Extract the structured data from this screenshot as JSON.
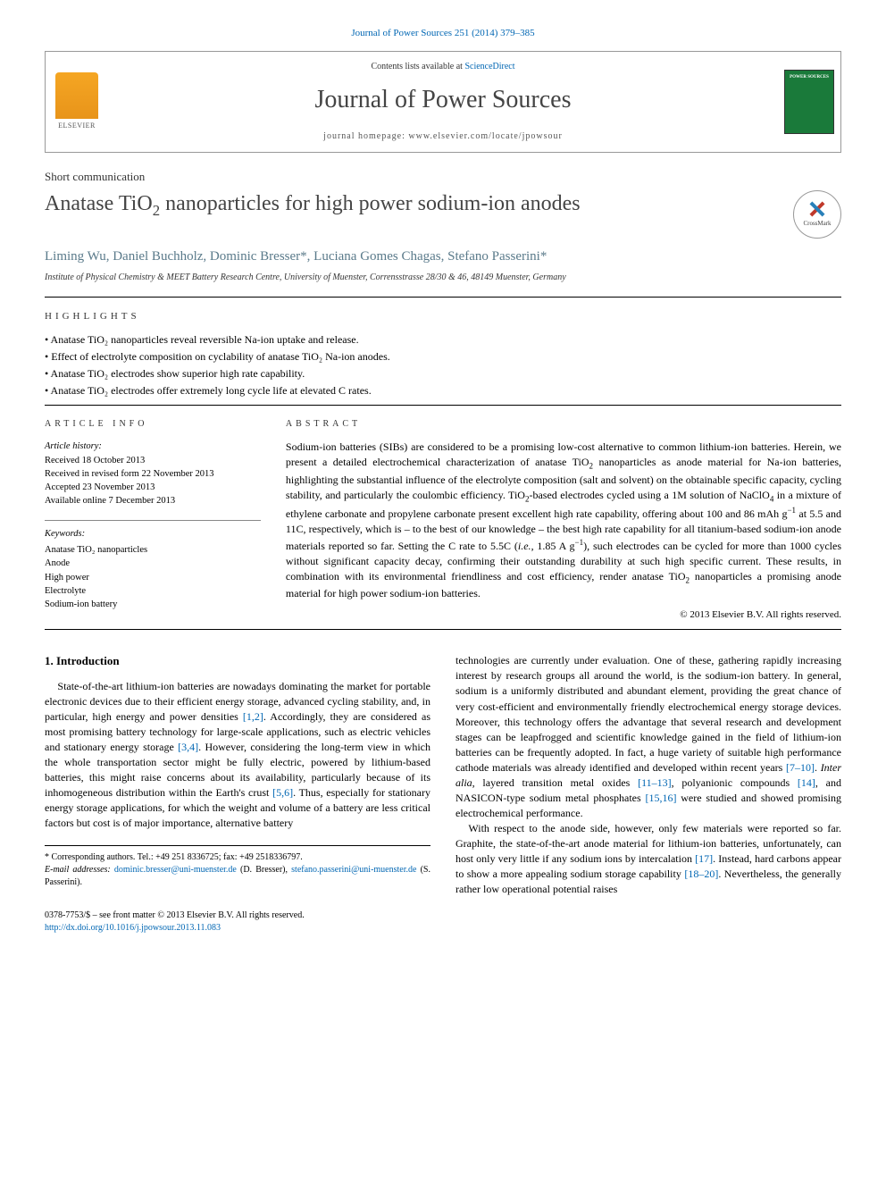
{
  "citation": "Journal of Power Sources 251 (2014) 379–385",
  "header": {
    "contents_prefix": "Contents lists available at ",
    "contents_link_text": "ScienceDirect",
    "journal_name": "Journal of Power Sources",
    "homepage_prefix": "journal homepage: ",
    "homepage_url": "www.elsevier.com/locate/jpowsour",
    "publisher_label": "ELSEVIER"
  },
  "article_type": "Short communication",
  "title_html": "Anatase TiO<sub>2</sub> nanoparticles for high power sodium-ion anodes",
  "crossmark_label": "CrossMark",
  "authors_html": "Liming Wu, Daniel Buchholz, Dominic Bresser<span class='corr'>*</span>, Luciana Gomes Chagas, Stefano Passerini<span class='corr'>*</span>",
  "affiliation": "Institute of Physical Chemistry & MEET Battery Research Centre, University of Muenster, Corrensstrasse 28/30 & 46, 48149 Muenster, Germany",
  "highlights_head": "highlights",
  "highlights": [
    "Anatase TiO₂ nanoparticles reveal reversible Na-ion uptake and release.",
    "Effect of electrolyte composition on cyclability of anatase TiO₂ Na-ion anodes.",
    "Anatase TiO₂ electrodes show superior high rate capability.",
    "Anatase TiO₂ electrodes offer extremely long cycle life at elevated C rates."
  ],
  "article_info_head": "article info",
  "history": {
    "head": "Article history:",
    "received": "Received 18 October 2013",
    "revised": "Received in revised form 22 November 2013",
    "accepted": "Accepted 23 November 2013",
    "online": "Available online 7 December 2013"
  },
  "keywords_head": "Keywords:",
  "keywords": [
    "Anatase TiO₂ nanoparticles",
    "Anode",
    "High power",
    "Electrolyte",
    "Sodium-ion battery"
  ],
  "abstract_head": "abstract",
  "abstract_html": "Sodium-ion batteries (SIBs) are considered to be a promising low-cost alternative to common lithium-ion batteries. Herein, we present a detailed electrochemical characterization of anatase TiO<sub>2</sub> nanoparticles as anode material for Na-ion batteries, highlighting the substantial influence of the electrolyte composition (salt and solvent) on the obtainable specific capacity, cycling stability, and particularly the coulombic efficiency. TiO<sub>2</sub>-based electrodes cycled using a 1M solution of NaClO<sub>4</sub> in a mixture of ethylene carbonate and propylene carbonate present excellent high rate capability, offering about 100 and 86 mAh g<sup>−1</sup> at 5.5 and 11C, respectively, which is – to the best of our knowledge – the best high rate capability for all titanium-based sodium-ion anode materials reported so far. Setting the C rate to 5.5C (<span class='ital'>i.e.</span>, 1.85 A g<sup>−1</sup>), such electrodes can be cycled for more than 1000 cycles without significant capacity decay, confirming their outstanding durability at such high specific current. These results, in combination with its environmental friendliness and cost efficiency, render anatase TiO<sub>2</sub> nanoparticles a promising anode material for high power sodium-ion batteries.",
  "copyright": "© 2013 Elsevier B.V. All rights reserved.",
  "intro_head": "1. Introduction",
  "intro_p1_html": "State-of-the-art lithium-ion batteries are nowadays dominating the market for portable electronic devices due to their efficient energy storage, advanced cycling stability, and, in particular, high energy and power densities <span class='ref'>[1,2]</span>. Accordingly, they are considered as most promising battery technology for large-scale applications, such as electric vehicles and stationary energy storage <span class='ref'>[3,4]</span>. However, considering the long-term view in which the whole transportation sector might be fully electric, powered by lithium-based batteries, this might raise concerns about its availability, particularly because of its inhomogeneous distribution within the Earth's crust <span class='ref'>[5,6]</span>. Thus, especially for stationary energy storage applications, for which the weight and volume of a battery are less critical factors but cost is of major importance, alternative battery",
  "intro_p1b_html": "technologies are currently under evaluation. One of these, gathering rapidly increasing interest by research groups all around the world, is the sodium-ion battery. In general, sodium is a uniformly distributed and abundant element, providing the great chance of very cost-efficient and environmentally friendly electrochemical energy storage devices. Moreover, this technology offers the advantage that several research and development stages can be leapfrogged and scientific knowledge gained in the field of lithium-ion batteries can be frequently adopted. In fact, a huge variety of suitable high performance cathode materials was already identified and developed within recent years <span class='ref'>[7–10]</span>. <span class='ital'>Inter alia</span>, layered transition metal oxides <span class='ref'>[11–13]</span>, polyanionic compounds <span class='ref'>[14]</span>, and NASICON-type sodium metal phosphates <span class='ref'>[15,16]</span> were studied and showed promising electrochemical performance.",
  "intro_p2_html": "With respect to the anode side, however, only few materials were reported so far. Graphite, the state-of-the-art anode material for lithium-ion batteries, unfortunately, can host only very little if any sodium ions by intercalation <span class='ref'>[17]</span>. Instead, hard carbons appear to show a more appealing sodium storage capability <span class='ref'>[18–20]</span>. Nevertheless, the generally rather low operational potential raises",
  "footnote": {
    "corr_line": "* Corresponding authors. Tel.: +49 251 8336725; fax: +49 2518336797.",
    "email_label": "E-mail addresses:",
    "email1": "dominic.bresser@uni-muenster.de",
    "name1": "(D. Bresser),",
    "email2": "stefano.passerini@uni-muenster.de",
    "name2": "(S. Passerini)."
  },
  "bottom": {
    "issn_line": "0378-7753/$ – see front matter © 2013 Elsevier B.V. All rights reserved.",
    "doi": "http://dx.doi.org/10.1016/j.jpowsour.2013.11.083"
  },
  "colors": {
    "link": "#0066b3",
    "author": "#5a7a8a",
    "elsevier_orange": "#e8941a",
    "cover_green": "#1a7a3a"
  }
}
